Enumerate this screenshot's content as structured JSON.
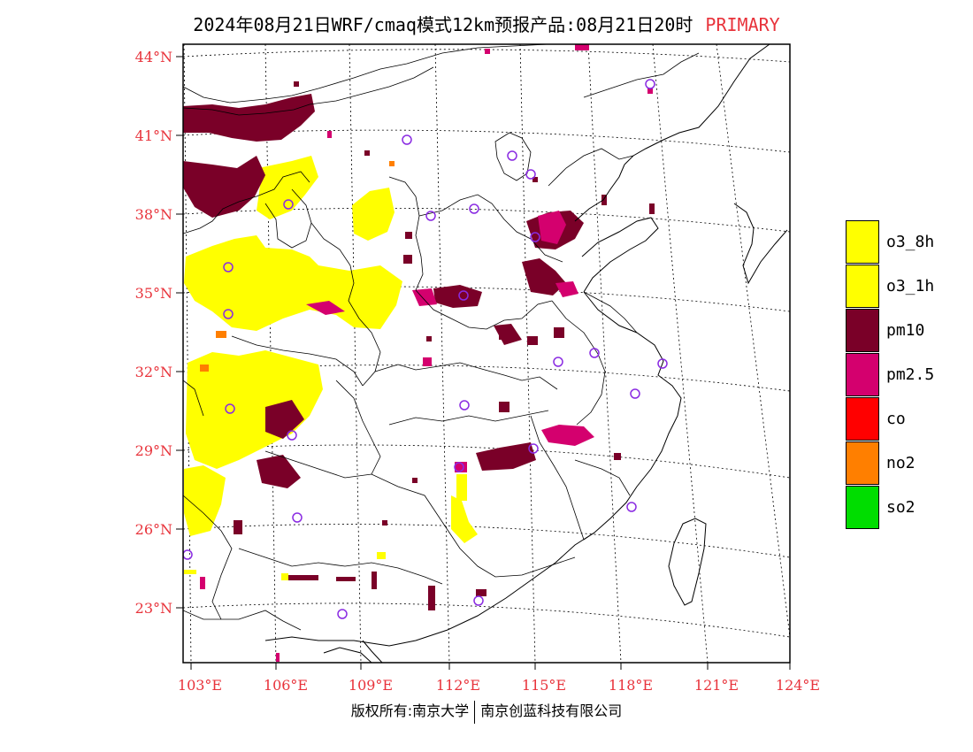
{
  "title": {
    "main": "2024年08月21日WRF/cmaq模式12km预报产品:08月21日20时",
    "tag": "PRIMARY"
  },
  "colors": {
    "o3_8h": "#ffff00",
    "o3_1h": "#ffff00",
    "pm10": "#7a0028",
    "pm25": "#d4006e",
    "co": "#ff0000",
    "no2": "#ff7f00",
    "so2": "#00dd00",
    "station": "#8a2be2",
    "axis_label": "#e8333b"
  },
  "legend": [
    {
      "label": "o3_8h",
      "color": "#ffff00"
    },
    {
      "label": "o3_1h",
      "color": "#ffff00"
    },
    {
      "label": "pm10",
      "color": "#7a0028"
    },
    {
      "label": "pm2.5",
      "color": "#d4006e"
    },
    {
      "label": "co",
      "color": "#ff0000"
    },
    {
      "label": "no2",
      "color": "#ff7f00"
    },
    {
      "label": "so2",
      "color": "#00dd00"
    }
  ],
  "lat_labels": [
    "44°N",
    "41°N",
    "38°N",
    "35°N",
    "32°N",
    "29°N",
    "26°N",
    "23°N"
  ],
  "lon_labels": [
    "103°E",
    "106°E",
    "109°E",
    "112°E",
    "115°E",
    "118°E",
    "121°E",
    "124°E"
  ],
  "footer": {
    "left": "版权所有:南京大学",
    "right": "南京创蓝科技有限公司"
  }
}
